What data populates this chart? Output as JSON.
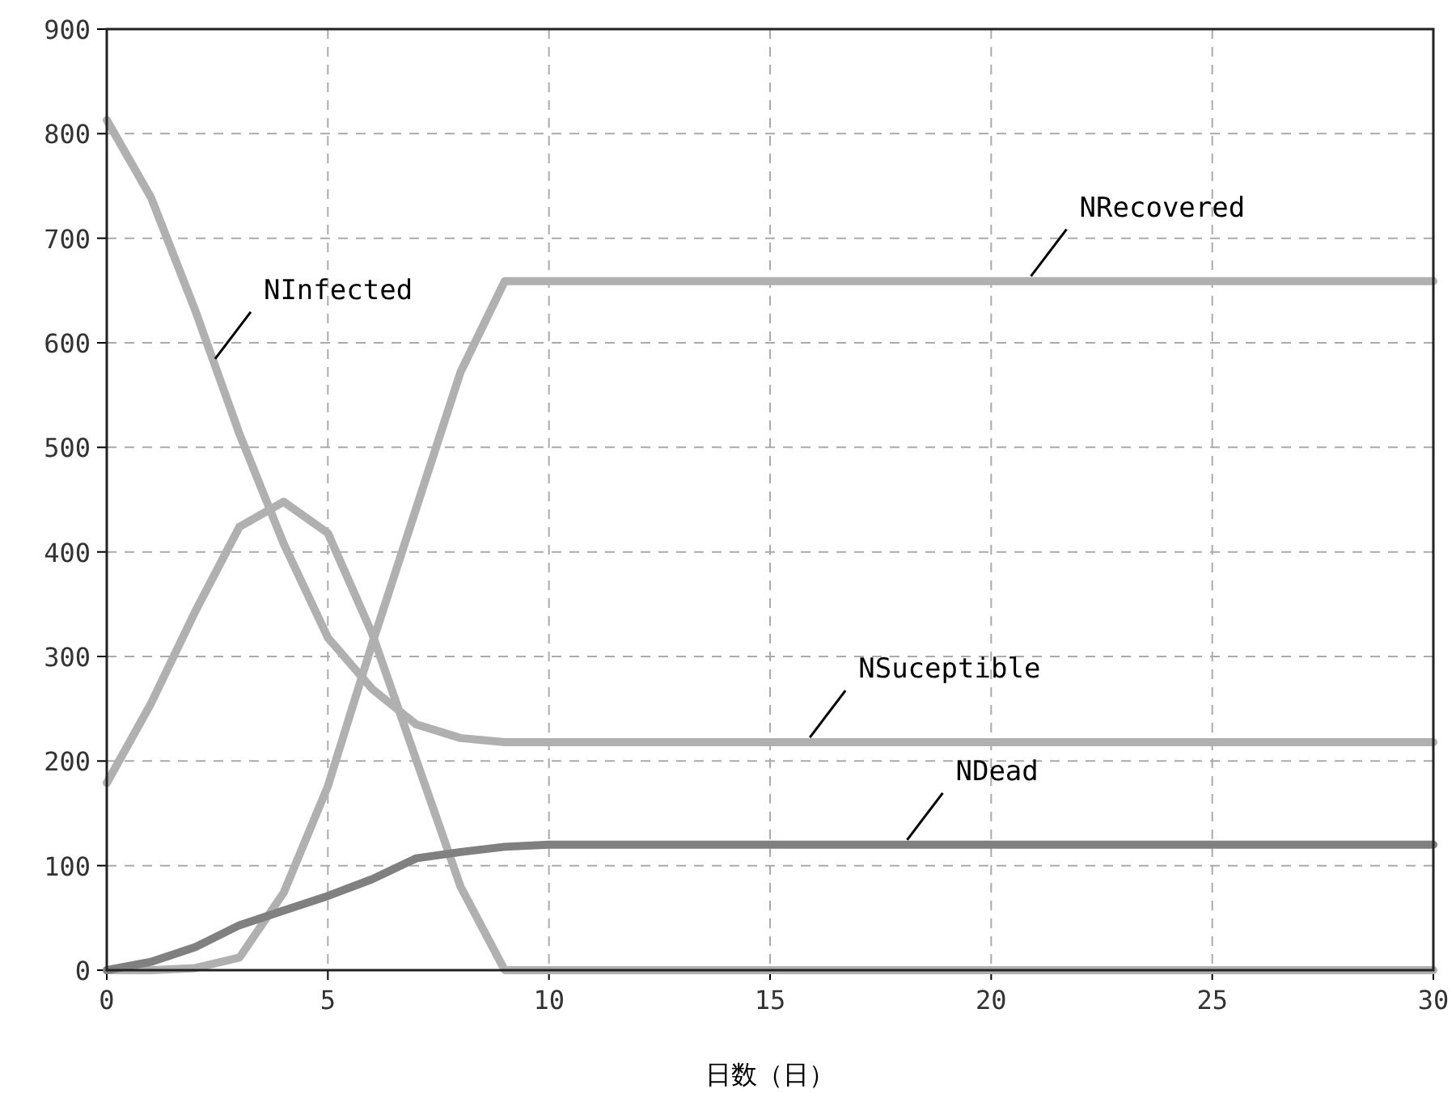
{
  "chart_data": {
    "type": "line",
    "xlabel": "日数（日）",
    "x": [
      0,
      1,
      2,
      3,
      4,
      5,
      6,
      7,
      8,
      9,
      10,
      11,
      12,
      13,
      14,
      15,
      16,
      17,
      18,
      19,
      20,
      21,
      22,
      23,
      24,
      25,
      26,
      27,
      28,
      29,
      30
    ],
    "series": [
      {
        "color": "#b0b0b0",
        "values": [
          813,
          739,
          631,
          513,
          408,
          318,
          269,
          235,
          222,
          218,
          218,
          218,
          218,
          218,
          218,
          218,
          218,
          218,
          218,
          218,
          218,
          218,
          218,
          218,
          218,
          218,
          218,
          218,
          218,
          218,
          218
        ]
      },
      {
        "color": "#b0b0b0",
        "values": [
          179,
          255,
          343,
          424,
          448,
          418,
          322,
          201,
          80,
          0,
          0,
          0,
          0,
          0,
          0,
          0,
          0,
          0,
          0,
          0,
          0,
          0,
          0,
          0,
          0,
          0,
          0,
          0,
          0,
          0,
          0
        ]
      },
      {
        "color": "#b0b0b0",
        "values": [
          0,
          0,
          2,
          12,
          74,
          176,
          312,
          442,
          572,
          659,
          659,
          659,
          659,
          659,
          659,
          659,
          659,
          659,
          659,
          659,
          659,
          659,
          659,
          659,
          659,
          659,
          659,
          659,
          659,
          659,
          659
        ]
      },
      {
        "color": "#808080",
        "values": [
          0,
          8,
          22,
          43,
          57,
          71,
          87,
          107,
          113,
          118,
          120,
          120,
          120,
          120,
          120,
          120,
          120,
          120,
          120,
          120,
          120,
          120,
          120,
          120,
          120,
          120,
          120,
          120,
          120,
          120,
          120
        ]
      }
    ],
    "annotations": [
      {
        "text": "NInfected",
        "x": 2.45,
        "y": 580
      },
      {
        "text": "NRecovered",
        "x": 20.9,
        "y": 659
      },
      {
        "text": "NSuceptible",
        "x": 15.9,
        "y": 218
      },
      {
        "text": "NDead",
        "x": 18.1,
        "y": 120
      }
    ],
    "xlim": [
      0,
      30
    ],
    "xticks": [
      0,
      5,
      10,
      15,
      20,
      25,
      30
    ],
    "ylim": [
      0,
      900
    ],
    "yticks": [
      0,
      100,
      200,
      300,
      400,
      500,
      600,
      700,
      800,
      900
    ],
    "grid": true,
    "line_style": "solid"
  }
}
